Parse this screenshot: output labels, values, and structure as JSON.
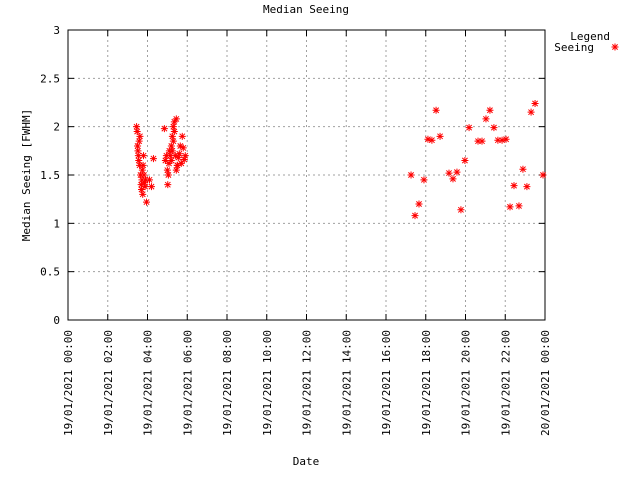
{
  "chart_data": {
    "type": "scatter",
    "title": "Median Seeing",
    "xlabel": "Date",
    "ylabel": "Median Seeing [FWHM]",
    "legend_title": "Legend",
    "legend": "top-right-outside",
    "grid": true,
    "xlim": [
      0,
      24
    ],
    "ylim": [
      0,
      3
    ],
    "xticks": [
      {
        "value": 0,
        "label": "19/01/2021 00:00"
      },
      {
        "value": 2,
        "label": "19/01/2021 02:00"
      },
      {
        "value": 4,
        "label": "19/01/2021 04:00"
      },
      {
        "value": 6,
        "label": "19/01/2021 06:00"
      },
      {
        "value": 8,
        "label": "19/01/2021 08:00"
      },
      {
        "value": 10,
        "label": "19/01/2021 10:00"
      },
      {
        "value": 12,
        "label": "19/01/2021 12:00"
      },
      {
        "value": 14,
        "label": "19/01/2021 14:00"
      },
      {
        "value": 16,
        "label": "19/01/2021 16:00"
      },
      {
        "value": 18,
        "label": "19/01/2021 18:00"
      },
      {
        "value": 20,
        "label": "19/01/2021 20:00"
      },
      {
        "value": 22,
        "label": "19/01/2021 22:00"
      },
      {
        "value": 24,
        "label": "20/01/2021 00:00"
      }
    ],
    "yticks": [
      0,
      0.5,
      1,
      1.5,
      2,
      2.5,
      3
    ],
    "series": [
      {
        "name": "Seeing",
        "color": "#ff0000",
        "x": [
          3.45,
          3.48,
          3.5,
          3.52,
          3.54,
          3.56,
          3.58,
          3.6,
          3.62,
          3.65,
          3.68,
          3.7,
          3.72,
          3.74,
          3.76,
          3.78,
          3.8,
          3.82,
          3.85,
          3.88,
          3.9,
          3.95,
          4.1,
          4.2,
          4.3,
          4.85,
          4.9,
          4.95,
          5.0,
          5.02,
          5.05,
          5.08,
          5.1,
          5.15,
          5.2,
          5.25,
          5.3,
          5.35,
          5.45,
          5.5,
          5.2,
          5.25,
          5.3,
          5.35,
          5.4,
          5.45,
          5.5,
          5.55,
          5.6,
          5.65,
          5.7,
          5.75,
          5.8,
          5.85,
          5.9,
          17.26,
          17.46,
          17.66,
          17.91,
          18.11,
          18.31,
          18.52,
          18.72,
          19.17,
          19.37,
          19.57,
          19.77,
          19.97,
          20.18,
          20.63,
          20.83,
          21.03,
          21.23,
          21.43,
          21.63,
          21.84,
          22.04,
          22.24,
          22.44,
          22.69,
          22.89,
          23.09,
          23.3,
          23.5,
          23.9
        ],
        "values": [
          2.0,
          1.95,
          1.8,
          1.75,
          1.7,
          1.65,
          1.85,
          1.6,
          1.9,
          1.5,
          1.4,
          1.35,
          1.45,
          1.55,
          1.3,
          1.6,
          1.7,
          1.5,
          1.42,
          1.38,
          1.45,
          1.22,
          1.45,
          1.38,
          1.67,
          1.98,
          1.65,
          1.7,
          1.55,
          1.4,
          1.5,
          1.62,
          1.75,
          1.7,
          1.8,
          1.9,
          2.0,
          2.05,
          2.08,
          1.6,
          1.65,
          1.75,
          1.85,
          1.95,
          1.7,
          1.55,
          1.6,
          1.68,
          1.72,
          1.8,
          1.62,
          1.9,
          1.78,
          1.66,
          1.7,
          1.5,
          1.08,
          1.2,
          1.45,
          1.87,
          1.86,
          2.17,
          1.9,
          1.52,
          1.46,
          1.53,
          1.14,
          1.65,
          1.99,
          1.85,
          1.85,
          2.08,
          2.17,
          1.99,
          1.86,
          1.86,
          1.87,
          1.17,
          1.39,
          1.18,
          1.56,
          1.38,
          2.15,
          2.24,
          1.5
        ]
      }
    ]
  }
}
